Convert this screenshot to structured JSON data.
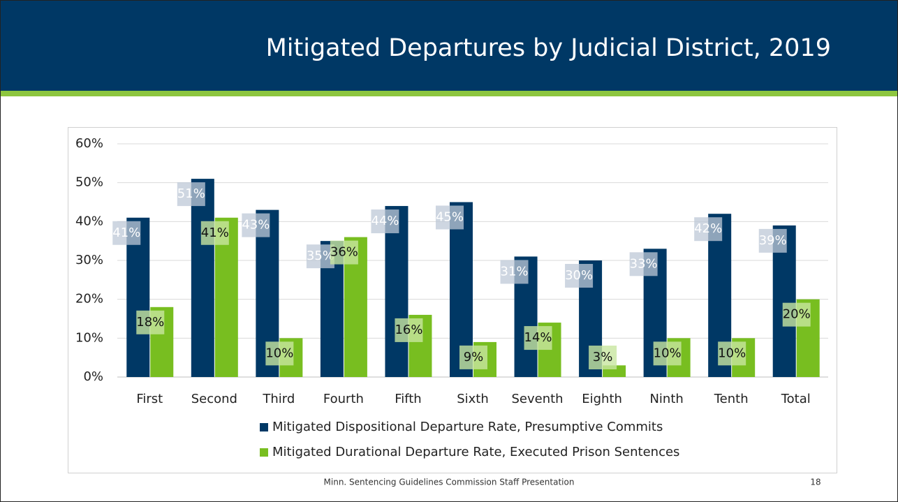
{
  "chart_data": {
    "type": "bar",
    "title": "Mitigated Departures by Judicial District, 2019",
    "categories": [
      "First",
      "Second",
      "Third",
      "Fourth",
      "Fifth",
      "Sixth",
      "Seventh",
      "Eighth",
      "Ninth",
      "Tenth",
      "Total"
    ],
    "series": [
      {
        "name": "Mitigated Dispositional Departure Rate, Presumptive Commits",
        "color": "#003865",
        "values": [
          41,
          51,
          43,
          35,
          44,
          45,
          31,
          30,
          33,
          42,
          39
        ],
        "value_labels": [
          "41%",
          "51%",
          "43%",
          "35%",
          "44%",
          "45%",
          "31%",
          "30%",
          "33%",
          "42%",
          "39%"
        ]
      },
      {
        "name": "Mitigated Durational Departure Rate, Executed Prison Sentences",
        "color": "#78be20",
        "values": [
          18,
          41,
          10,
          36,
          16,
          9,
          14,
          3,
          10,
          10,
          20
        ],
        "value_labels": [
          "18%",
          "41%",
          "10%",
          "36%",
          "16%",
          "9%",
          "14%",
          "3%",
          "10%",
          "10%",
          "20%"
        ]
      }
    ],
    "ylim": [
      0,
      60
    ],
    "yticks": [
      {
        "value": 0,
        "label": "0%"
      },
      {
        "value": 10,
        "label": "10%"
      },
      {
        "value": 20,
        "label": "20%"
      },
      {
        "value": 30,
        "label": "30%"
      },
      {
        "value": 40,
        "label": "40%"
      },
      {
        "value": 50,
        "label": "50%"
      },
      {
        "value": 60,
        "label": "60%"
      }
    ],
    "grid": true
  },
  "footer": {
    "text": "Minn. Sentencing Guidelines Commission Staff Presentation",
    "page": "18"
  }
}
